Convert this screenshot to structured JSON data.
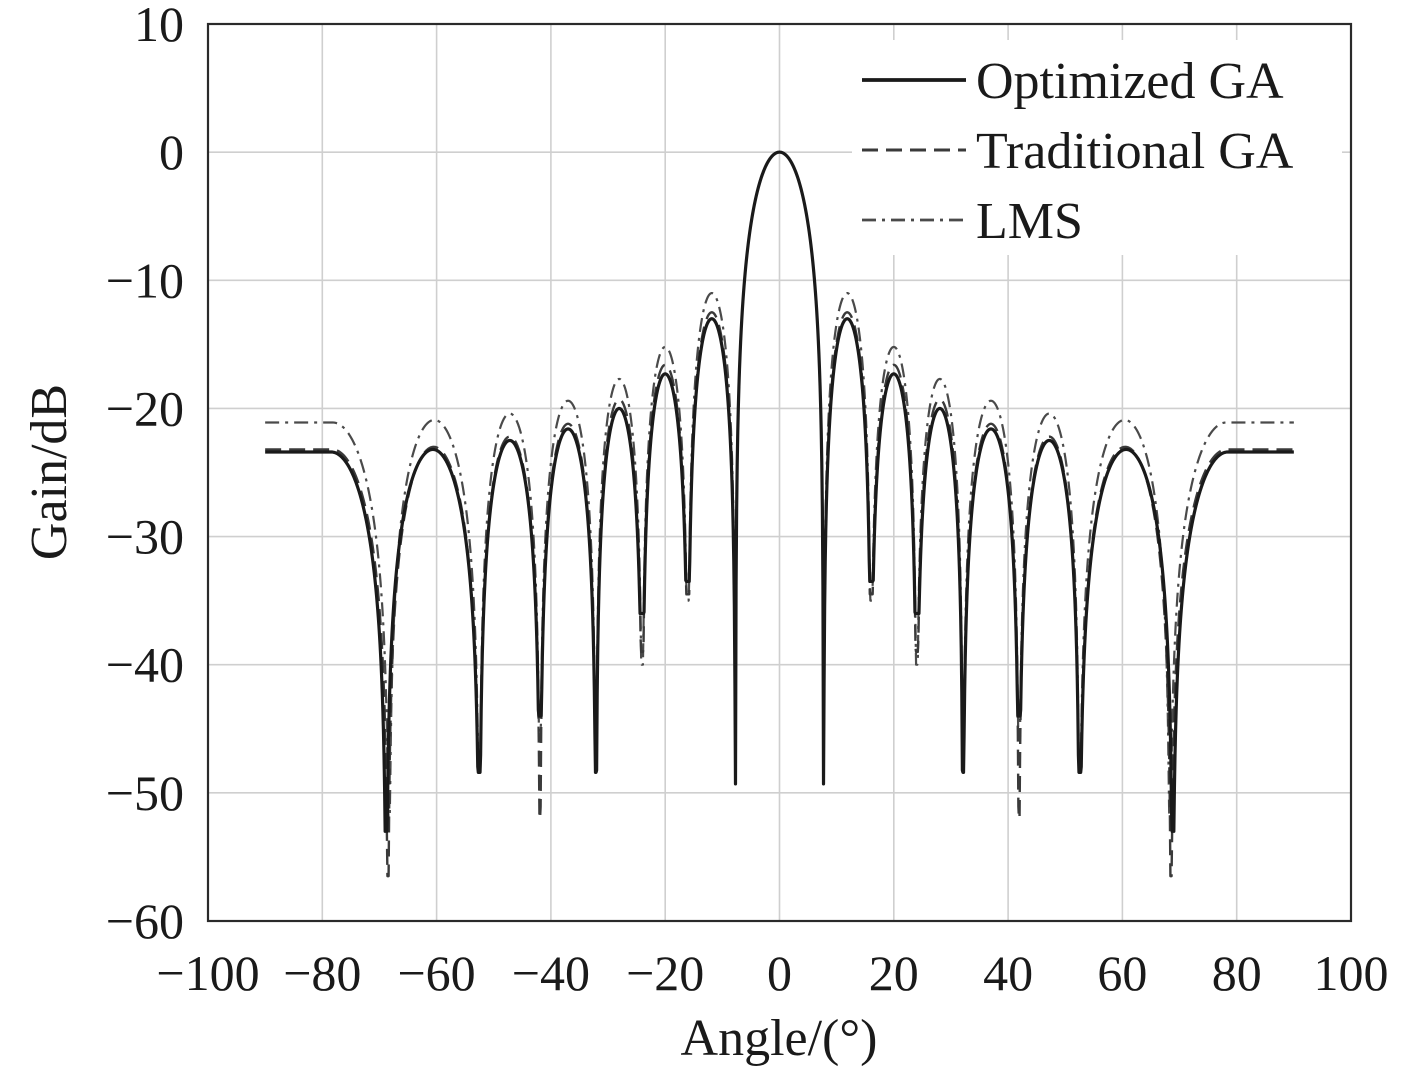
{
  "chart_data": {
    "type": "line",
    "title": "",
    "xlabel": "Angle/(°)",
    "ylabel": "Gain/dB",
    "xlim": [
      -100,
      100
    ],
    "ylim": [
      -60,
      10
    ],
    "xticks": [
      -100,
      -80,
      -60,
      -40,
      -20,
      0,
      20,
      40,
      60,
      80,
      100
    ],
    "yticks": [
      10,
      0,
      -10,
      -20,
      -30,
      -40,
      -50,
      -60
    ],
    "xtick_labels": [
      "−100",
      "−80",
      "−60",
      "−40",
      "−20",
      "0",
      "20",
      "40",
      "60",
      "80",
      "100"
    ],
    "ytick_labels": [
      "10",
      "0",
      "−10",
      "−20",
      "−30",
      "−40",
      "−50",
      "−60"
    ],
    "grid": true,
    "legend_position": "top-right",
    "x_range": [
      -90,
      90
    ],
    "series": [
      {
        "name": "Optimized GA",
        "style": "solid",
        "color": "#1a1a1a",
        "edge_level": -23.4,
        "nulls": [
          [
            7.7,
            -49.3
          ],
          [
            16.0,
            -33.5
          ],
          [
            24.0,
            -36.0
          ],
          [
            32.1,
            -48.4
          ],
          [
            41.9,
            -44.0
          ],
          [
            52.5,
            -48.4
          ],
          [
            68.8,
            -53.0
          ]
        ],
        "peaks": [
          [
            0,
            0
          ],
          [
            11.0,
            -13.0
          ],
          [
            19.0,
            -17.3
          ],
          [
            27.7,
            -20.0
          ],
          [
            36.5,
            -21.6
          ],
          [
            47.0,
            -22.5
          ],
          [
            60.0,
            -23.2
          ],
          [
            90.0,
            -23.4
          ]
        ]
      },
      {
        "name": "Traditional GA",
        "style": "dashed",
        "color": "#3a3a3a",
        "edge_level": -23.2,
        "nulls": [
          [
            7.7,
            -49.3
          ],
          [
            16.0,
            -34.5
          ],
          [
            24.0,
            -39.0
          ],
          [
            32.1,
            -48.4
          ],
          [
            41.9,
            -52.0
          ],
          [
            52.5,
            -48.4
          ],
          [
            68.5,
            -56.5
          ]
        ],
        "peaks": [
          [
            0,
            0
          ],
          [
            11.0,
            -12.5
          ],
          [
            19.0,
            -16.6
          ],
          [
            27.7,
            -19.3
          ],
          [
            36.5,
            -21.2
          ],
          [
            47.0,
            -22.2
          ],
          [
            60.0,
            -23.0
          ],
          [
            90.0,
            -23.2
          ]
        ]
      },
      {
        "name": "LMS",
        "style": "dashdot",
        "color": "#4a4a4a",
        "edge_level": -21.1,
        "nulls": [
          [
            7.7,
            -49.3
          ],
          [
            16.0,
            -35.0
          ],
          [
            24.0,
            -40.0
          ],
          [
            32.1,
            -48.4
          ],
          [
            41.9,
            -46.0
          ],
          [
            52.5,
            -48.4
          ],
          [
            68.3,
            -52.0
          ]
        ],
        "peaks": [
          [
            0,
            0
          ],
          [
            11.0,
            -11.0
          ],
          [
            19.0,
            -15.2
          ],
          [
            27.7,
            -17.7
          ],
          [
            36.5,
            -19.4
          ],
          [
            47.0,
            -20.4
          ],
          [
            60.0,
            -20.9
          ],
          [
            90.0,
            -21.1
          ]
        ]
      }
    ]
  }
}
